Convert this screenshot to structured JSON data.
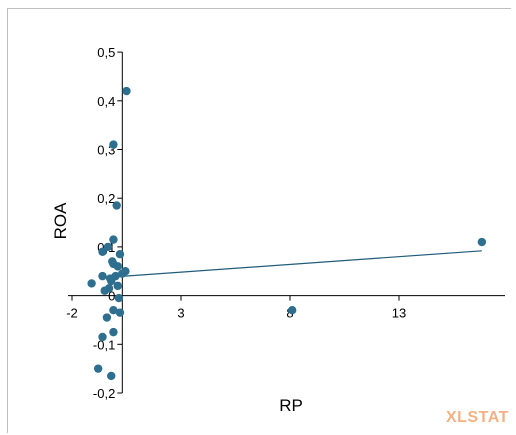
{
  "chart_data": {
    "type": "scatter",
    "title": "",
    "xlabel": "RP",
    "ylabel": "ROA",
    "xlim": [
      -2,
      18
    ],
    "ylim": [
      -0.2,
      0.5
    ],
    "x_tick_labels": [
      "-2",
      "3",
      "8",
      "13"
    ],
    "x_ticks": [
      -2,
      3,
      8,
      13
    ],
    "y_tick_labels": [
      "-0,2",
      "-0,1",
      "0",
      "0,1",
      "0,2",
      "0,3",
      "0,4",
      "0,5"
    ],
    "y_ticks": [
      -0.2,
      -0.1,
      0,
      0.1,
      0.2,
      0.3,
      0.4,
      0.5
    ],
    "grid": false,
    "legend": "none",
    "points": [
      {
        "x": 0.5,
        "y": 0.42
      },
      {
        "x": -0.1,
        "y": 0.31
      },
      {
        "x": 0.05,
        "y": 0.185
      },
      {
        "x": -0.1,
        "y": 0.115
      },
      {
        "x": -0.6,
        "y": 0.09
      },
      {
        "x": -0.35,
        "y": 0.1
      },
      {
        "x": 0.2,
        "y": 0.085
      },
      {
        "x": -0.15,
        "y": 0.07
      },
      {
        "x": 0.1,
        "y": 0.06
      },
      {
        "x": 0.45,
        "y": 0.05
      },
      {
        "x": 0.3,
        "y": 0.045
      },
      {
        "x": 0.0,
        "y": 0.04
      },
      {
        "x": -0.2,
        "y": 0.03
      },
      {
        "x": 0.1,
        "y": 0.02
      },
      {
        "x": -0.3,
        "y": 0.015
      },
      {
        "x": -1.1,
        "y": 0.025
      },
      {
        "x": -0.5,
        "y": 0.01
      },
      {
        "x": -0.6,
        "y": 0.04
      },
      {
        "x": -0.1,
        "y": 0.065
      },
      {
        "x": -0.25,
        "y": 0.035
      },
      {
        "x": 0.15,
        "y": -0.005
      },
      {
        "x": -0.1,
        "y": -0.03
      },
      {
        "x": 0.2,
        "y": -0.035
      },
      {
        "x": -0.4,
        "y": -0.045
      },
      {
        "x": -0.1,
        "y": -0.075
      },
      {
        "x": -0.6,
        "y": -0.085
      },
      {
        "x": -0.8,
        "y": -0.15
      },
      {
        "x": -0.2,
        "y": -0.165
      },
      {
        "x": 8.1,
        "y": -0.03
      },
      {
        "x": 16.8,
        "y": 0.11
      }
    ],
    "trendline": {
      "color": "#1f5c7a",
      "from": {
        "x": -0.2,
        "y": 0.038
      },
      "to": {
        "x": 16.8,
        "y": 0.092
      }
    },
    "marker_color": "#2e6e8e"
  },
  "watermark": "XLSTAT"
}
